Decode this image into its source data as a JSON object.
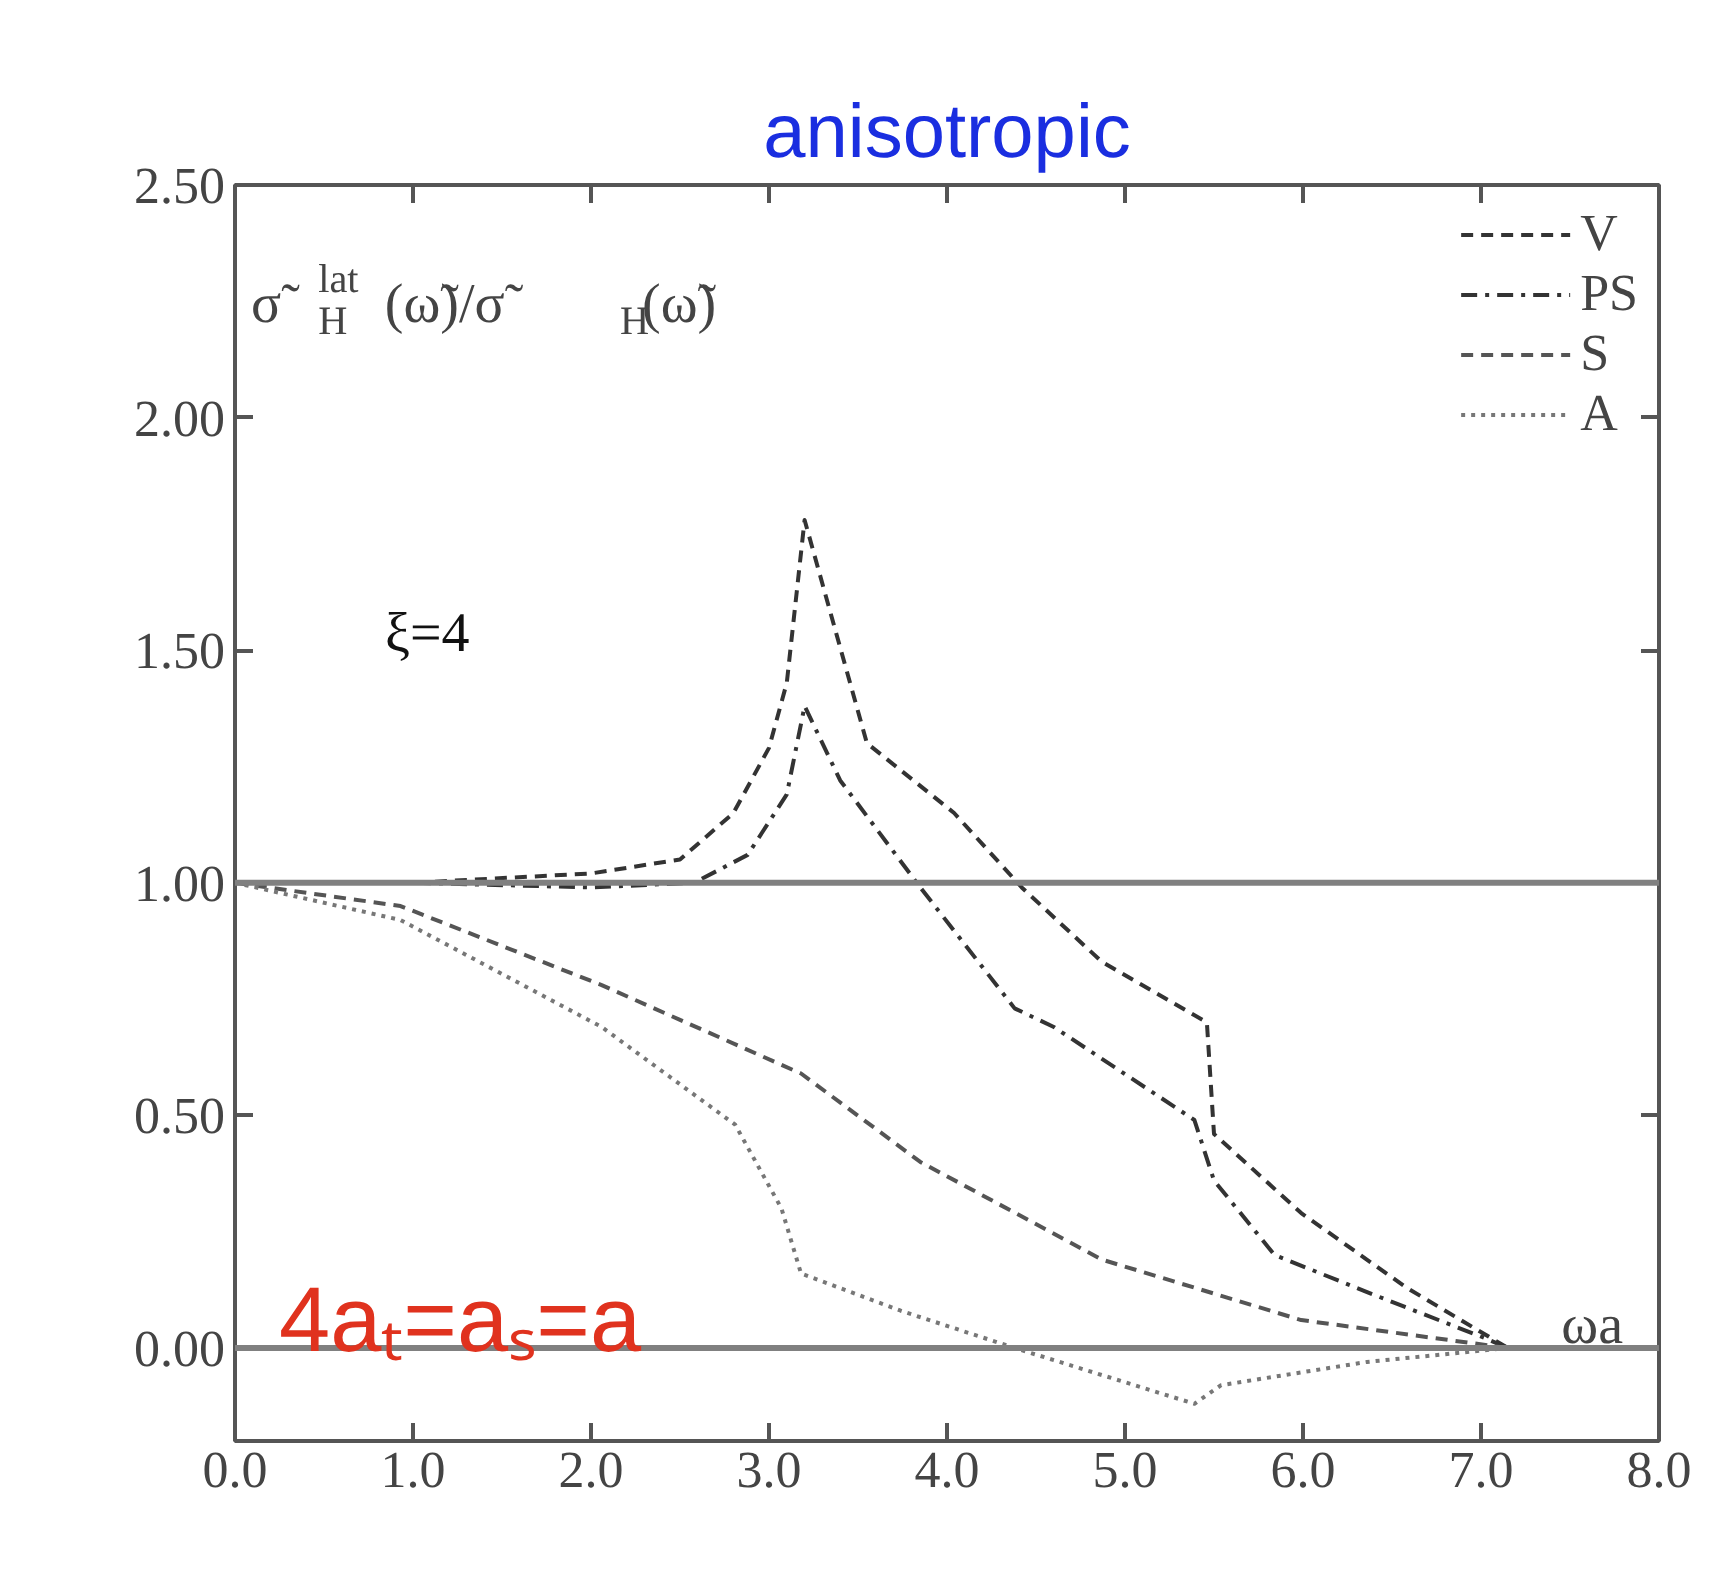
{
  "chart_data": {
    "type": "line",
    "title": "anisotropic",
    "ylabel": "σ̃$^{lat}$$_{H}$(ω̃)/σ̃$_{H}$(ω̃)",
    "xlabel": "ωa",
    "annotations": [
      "ξ=4",
      "4aₜ=aₛ=a"
    ],
    "xlim": [
      0,
      8
    ],
    "ylim": [
      -0.2,
      2.5
    ],
    "xticks": [
      {
        "value": 0,
        "label": "0.0"
      },
      {
        "value": 1,
        "label": "1.0"
      },
      {
        "value": 2,
        "label": "2.0"
      },
      {
        "value": 3,
        "label": "3.0"
      },
      {
        "value": 4,
        "label": "4.0"
      },
      {
        "value": 5,
        "label": "5.0"
      },
      {
        "value": 6,
        "label": "6.0"
      },
      {
        "value": 7,
        "label": "7.0"
      },
      {
        "value": 8,
        "label": "8.0"
      }
    ],
    "yticks": [
      {
        "value": 0,
        "label": "0.00"
      },
      {
        "value": 0.5,
        "label": "0.50"
      },
      {
        "value": 1,
        "label": "1.00"
      },
      {
        "value": 1.5,
        "label": "1.50"
      },
      {
        "value": 2,
        "label": "2.00"
      },
      {
        "value": 2.5,
        "label": "2.50"
      }
    ],
    "ref_lines": [
      {
        "axis": "y",
        "value": 1,
        "color": "#808080"
      },
      {
        "axis": "y",
        "value": 0,
        "color": "#808080"
      }
    ],
    "legend": "top right",
    "grid": false,
    "series": [
      {
        "name": "V",
        "color": "#333333",
        "line_style": "dashed",
        "x": [
          0,
          1,
          2,
          2.5,
          2.8,
          3.0,
          3.1,
          3.2,
          3.55,
          4.04,
          4.42,
          4.87,
          5.46,
          5.5,
          5.99,
          6.58,
          7.15
        ],
        "values": [
          1.0,
          1.0,
          1.02,
          1.05,
          1.15,
          1.29,
          1.43,
          1.78,
          1.3,
          1.15,
          0.99,
          0.83,
          0.7,
          0.46,
          0.29,
          0.13,
          0.0
        ]
      },
      {
        "name": "PS",
        "color": "#333333",
        "line_style": "dashdot",
        "x": [
          0,
          1,
          2,
          2.58,
          2.88,
          3.1,
          3.2,
          3.4,
          3.85,
          4.38,
          4.6,
          5.39,
          5.5,
          5.84,
          6.36,
          7.03,
          7.15
        ],
        "values": [
          1.0,
          1.0,
          0.99,
          1.0,
          1.06,
          1.19,
          1.38,
          1.22,
          0.99,
          0.73,
          0.69,
          0.49,
          0.36,
          0.2,
          0.12,
          0.02,
          0.0
        ]
      },
      {
        "name": "S",
        "color": "#555555",
        "line_style": "dashed",
        "x": [
          0,
          0.93,
          2.06,
          3.18,
          3.85,
          4.87,
          5.99,
          7.15
        ],
        "values": [
          1.0,
          0.95,
          0.78,
          0.59,
          0.4,
          0.19,
          0.06,
          0.0
        ]
      },
      {
        "name": "A",
        "color": "#777777",
        "line_style": "dotted",
        "x": [
          0,
          0.93,
          2.06,
          2.81,
          3.07,
          3.18,
          3.74,
          4.38,
          5.39,
          5.54,
          6.36,
          7.15
        ],
        "values": [
          1.0,
          0.92,
          0.69,
          0.48,
          0.3,
          0.16,
          0.08,
          0.0,
          -0.12,
          -0.08,
          -0.03,
          0.0
        ]
      }
    ]
  }
}
